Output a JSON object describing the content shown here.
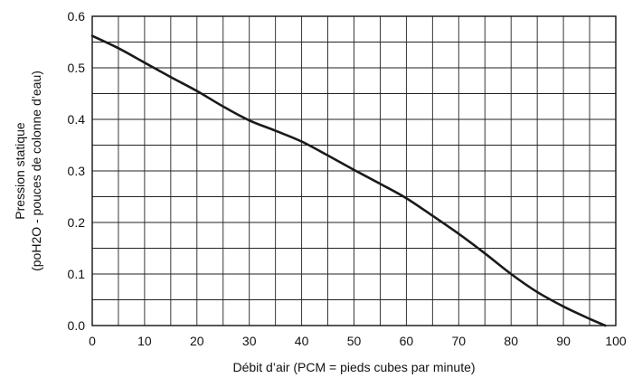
{
  "chart_data": {
    "type": "line",
    "title": "",
    "xlabel": "Débit d’air (PCM = pieds cubes par minute)",
    "ylabel_lines": [
      "Pression statique",
      "(poH2O - pouces de colonne d’eau)"
    ],
    "xlim": [
      0,
      100
    ],
    "ylim": [
      0,
      0.6
    ],
    "x_ticks": [
      0,
      10,
      20,
      30,
      40,
      50,
      60,
      70,
      80,
      90,
      100
    ],
    "x_tick_labels": [
      "0",
      "10",
      "20",
      "30",
      "40",
      "50",
      "60",
      "70",
      "80",
      "90",
      "100"
    ],
    "y_ticks": [
      0,
      0.1,
      0.2,
      0.3,
      0.4,
      0.5,
      0.6
    ],
    "y_tick_labels": [
      "0.0",
      "0.1",
      "0.2",
      "0.3",
      "0.4",
      "0.5",
      "0.6"
    ],
    "grid": true,
    "grid_x_step": 5,
    "grid_y_step": 0.05,
    "legend": "none",
    "colors": {
      "line": "#1a1a1a",
      "grid": "#222222",
      "text": "#111111"
    },
    "series": [
      {
        "x": [
          0,
          5,
          10,
          15,
          20,
          25,
          30,
          35,
          40,
          45,
          50,
          55,
          60,
          65,
          70,
          75,
          80,
          85,
          90,
          95,
          98
        ],
        "y": [
          0.562,
          0.538,
          0.51,
          0.482,
          0.455,
          0.425,
          0.398,
          0.378,
          0.357,
          0.33,
          0.302,
          0.275,
          0.247,
          0.213,
          0.178,
          0.14,
          0.1,
          0.065,
          0.037,
          0.013,
          0.0
        ]
      }
    ]
  }
}
